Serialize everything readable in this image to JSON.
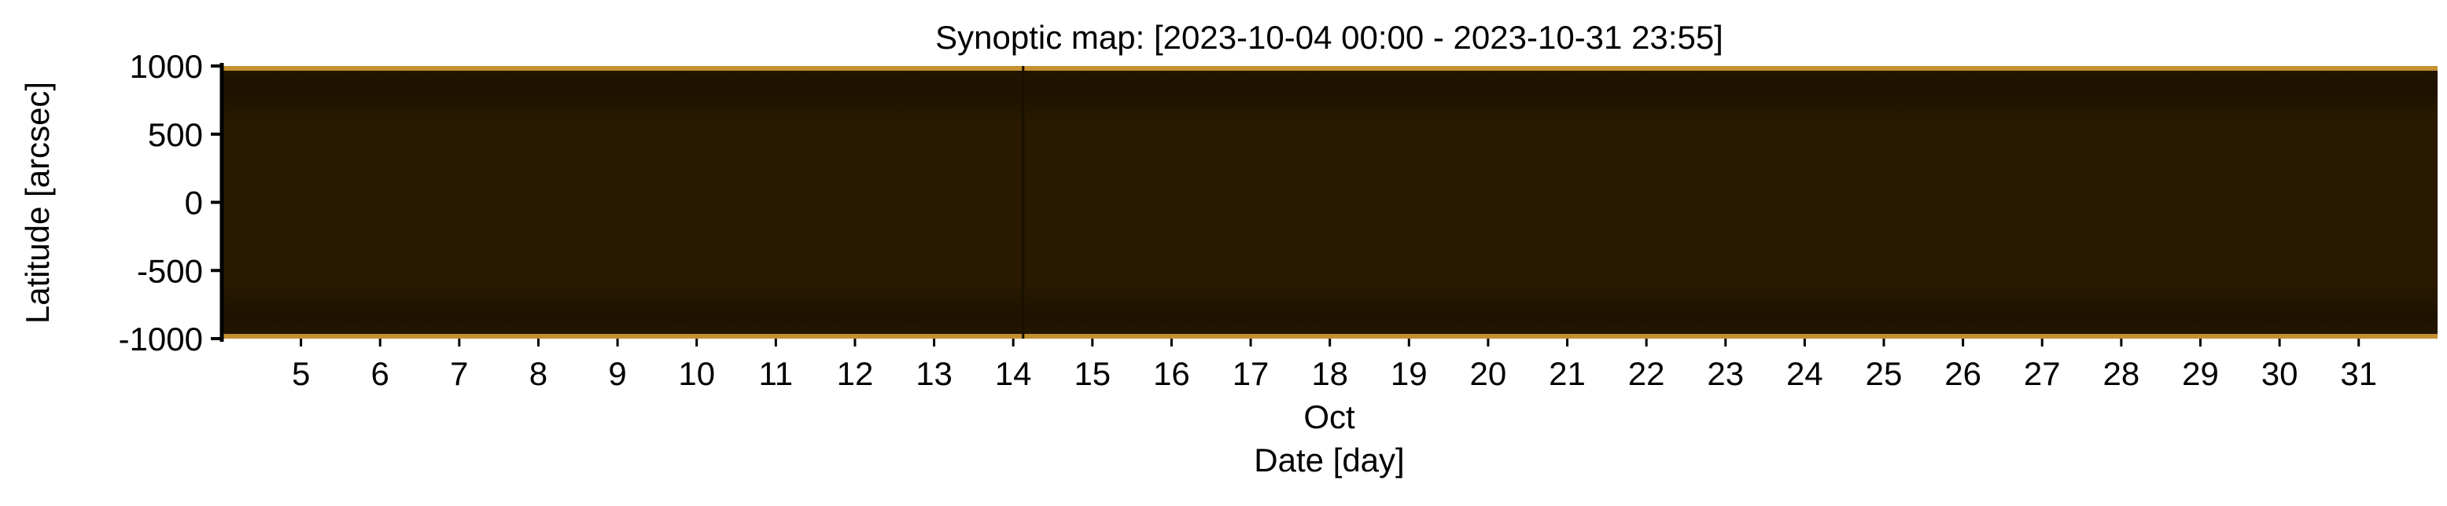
{
  "chart_data": {
    "type": "heatmap",
    "title": "Synoptic map: [2023-10-04 00:00 - 2023-10-31 23:55]",
    "xlabel": "Date [day]",
    "xlabel_month": "Oct",
    "ylabel": "Latitude [arcsec]",
    "x_start": "2023-10-04 00:00",
    "x_end": "2023-10-31 23:55",
    "xlim": [
      "2023-10-04 00:00",
      "2023-10-31 23:55"
    ],
    "ylim": [
      -1000,
      1000
    ],
    "x_ticks": [
      5,
      6,
      7,
      8,
      9,
      10,
      11,
      12,
      13,
      14,
      15,
      16,
      17,
      18,
      19,
      20,
      21,
      22,
      23,
      24,
      25,
      26,
      27,
      28,
      29,
      30,
      31
    ],
    "y_ticks": [
      1000,
      500,
      0,
      -500,
      -1000
    ],
    "y_tick_labels": [
      "1000",
      "500",
      "0",
      "-500",
      "-1000"
    ],
    "colormap": [
      "#2a1c00",
      "#6b4a00",
      "#b07800",
      "#e6a200",
      "#ffd24a",
      "#fff2b0"
    ],
    "data_gap_dates": [
      "2023-10-14 03:00"
    ],
    "grid": false,
    "legend": "none"
  }
}
